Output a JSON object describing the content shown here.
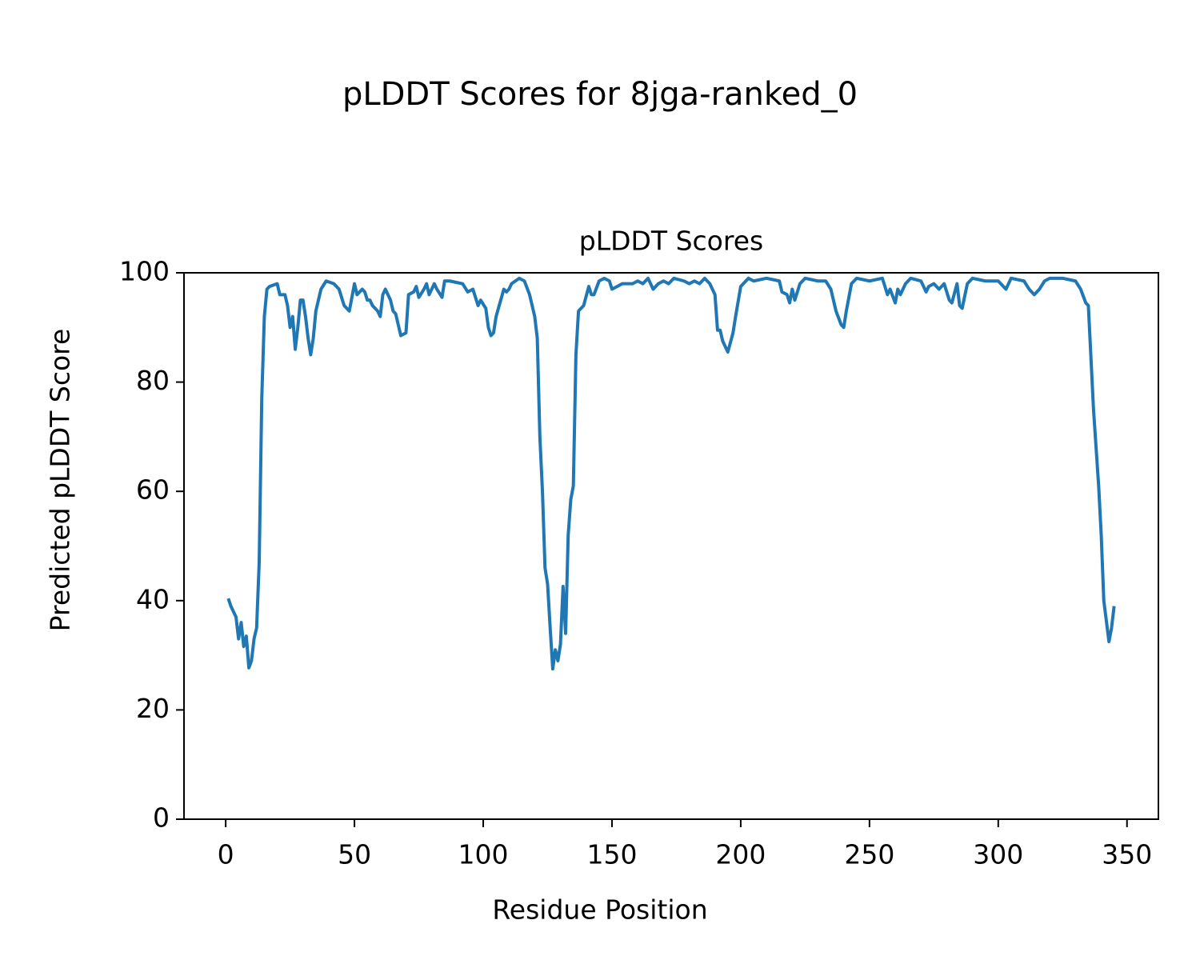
{
  "chart_data": {
    "type": "line",
    "title": "pLDDT Scores for 8jga-ranked_0",
    "subtitle": "pLDDT Scores",
    "x_label": "Residue Position",
    "y_label": "Predicted pLDDT Score",
    "color": "#1f77b4",
    "xlim": [
      -16.2,
      362.2
    ],
    "xticks": [
      0,
      50,
      100,
      150,
      200,
      250,
      300,
      350
    ],
    "ylim": [
      0,
      100
    ],
    "yticks": [
      0,
      20,
      40,
      60,
      80,
      100
    ],
    "x": [
      1,
      2,
      3,
      4,
      5,
      6,
      7,
      8,
      9,
      10,
      11,
      12,
      13,
      14,
      15,
      16,
      17,
      20,
      21,
      23,
      24,
      25,
      26,
      27,
      28,
      29,
      30,
      31,
      32,
      33,
      34,
      35,
      37,
      39,
      42,
      44,
      46,
      48,
      50,
      51,
      53,
      54,
      55,
      56,
      57,
      59,
      60,
      61,
      62,
      64,
      65,
      66,
      68,
      70,
      71,
      73,
      74,
      75,
      77,
      78,
      79,
      81,
      82,
      84,
      85,
      87,
      92,
      94,
      96,
      98,
      99,
      101,
      102,
      103,
      104,
      105,
      108,
      109,
      110,
      111,
      114,
      116,
      118,
      120,
      121,
      122,
      123,
      124,
      125,
      126,
      127,
      128,
      129,
      130,
      131,
      132,
      133,
      134,
      135,
      136,
      137,
      139,
      141,
      142,
      143,
      145,
      147,
      149,
      150,
      152,
      154,
      158,
      160,
      162,
      164,
      166,
      168,
      170,
      172,
      174,
      178,
      180,
      182,
      184,
      186,
      188,
      190,
      191,
      192,
      193,
      195,
      197,
      198,
      200,
      203,
      205,
      210,
      215,
      216,
      218,
      219,
      220,
      221,
      223,
      225,
      230,
      233,
      235,
      237,
      239,
      240,
      241,
      243,
      245,
      250,
      255,
      257,
      258,
      260,
      261,
      262,
      264,
      266,
      270,
      272,
      273,
      275,
      277,
      279,
      281,
      282,
      284,
      285,
      286,
      288,
      290,
      295,
      300,
      303,
      305,
      310,
      312,
      314,
      316,
      318,
      320,
      325,
      330,
      332,
      334,
      335,
      337,
      339,
      340,
      341,
      343,
      344,
      345
    ],
    "values": [
      40.4,
      39,
      38,
      37,
      33,
      36,
      31.6,
      33.5,
      27.7,
      29,
      33,
      35,
      47,
      77,
      92,
      97,
      97.5,
      98,
      96,
      96,
      94,
      90,
      92,
      86,
      90,
      95,
      95,
      92,
      88,
      85,
      88,
      93,
      97,
      98.5,
      98,
      97,
      94,
      93,
      98,
      96,
      97,
      96.5,
      95,
      95,
      94,
      93,
      92,
      96,
      97,
      95,
      93,
      92.5,
      88.5,
      89,
      96,
      96.5,
      97.5,
      95.5,
      97,
      98,
      96,
      98,
      97,
      95.5,
      98.5,
      98.5,
      98,
      96.5,
      97,
      94,
      95,
      93.5,
      90,
      88.5,
      89,
      92,
      97,
      96.5,
      97,
      98,
      99,
      98.5,
      96,
      92,
      88,
      70,
      60,
      46,
      43,
      35,
      27.5,
      31,
      29,
      32,
      42.6,
      34,
      52,
      58.5,
      61,
      85,
      93,
      94,
      97.5,
      96,
      96,
      98.5,
      99,
      98.5,
      97,
      97.5,
      98,
      98,
      98.5,
      98,
      99,
      97,
      98,
      98.5,
      98,
      99,
      98.5,
      98,
      98.5,
      98,
      99,
      98,
      96,
      89.5,
      89.5,
      87.5,
      85.5,
      89,
      92,
      97.5,
      99,
      98.5,
      99,
      98.5,
      96.5,
      96,
      94.5,
      97,
      95,
      98,
      99,
      98.5,
      98.5,
      97,
      93,
      90.5,
      90,
      93,
      98,
      99,
      98.5,
      99,
      96,
      97,
      94.5,
      97,
      96,
      98,
      99,
      98.5,
      96.5,
      97.5,
      98,
      97,
      98,
      95,
      94.5,
      98,
      94,
      93.5,
      98,
      99,
      98.5,
      98.5,
      97,
      99,
      98.5,
      97,
      96,
      97,
      98.5,
      99,
      99,
      98.5,
      97,
      94.5,
      94,
      75,
      61,
      52,
      40,
      32.5,
      35,
      39
    ]
  }
}
